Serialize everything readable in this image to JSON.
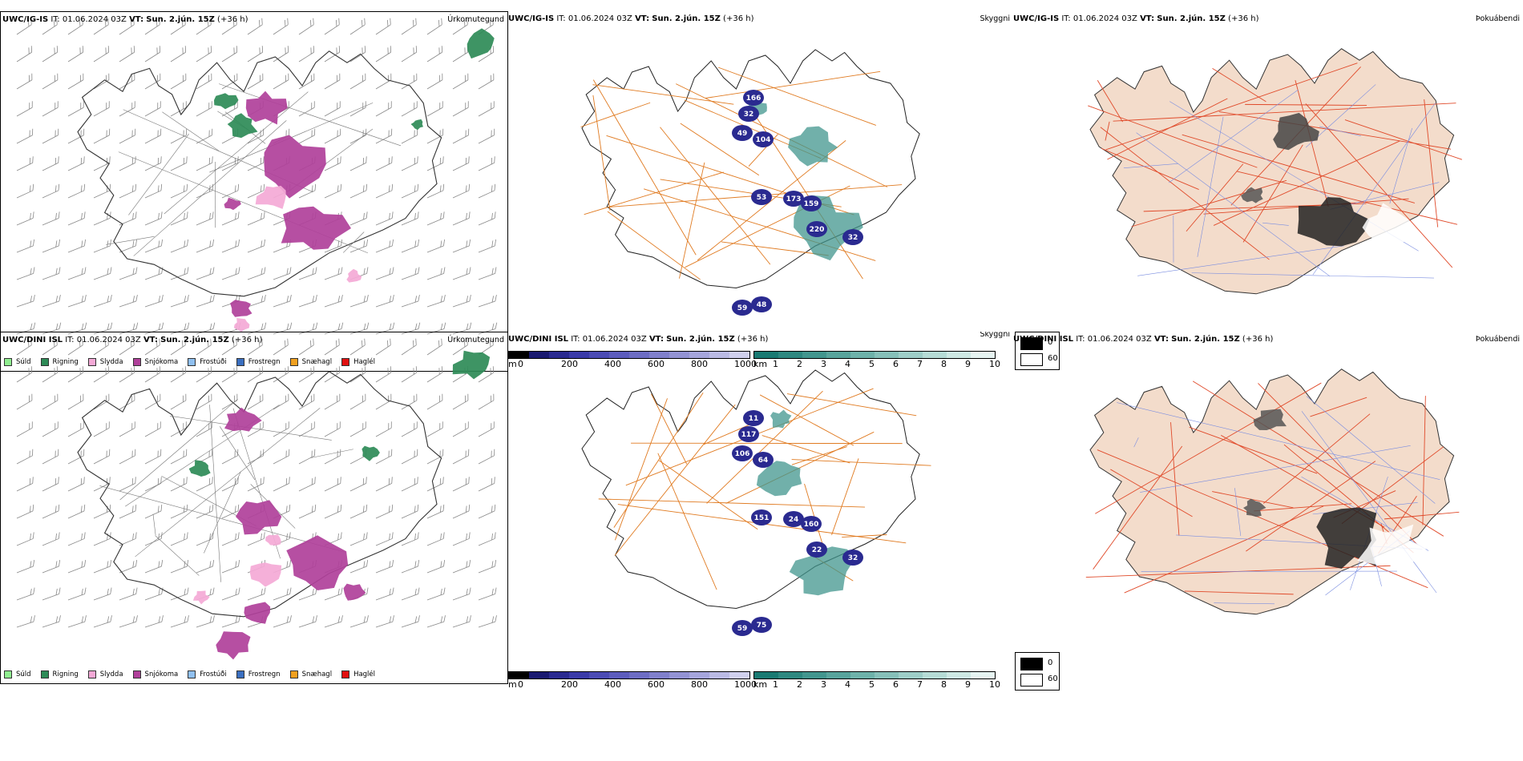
{
  "rows": [
    {
      "model": "UWC/IG-IS",
      "it_label": "IT:",
      "it_value": "01.06.2024 03Z",
      "vt_label": "VT:",
      "vt_value": "Sun. 2.jún. 15Z",
      "lead": "(+36 h)",
      "panel1_right": "Úrkomutegund",
      "panel2_right": "Skyggni",
      "panel3_right": "Þokuábendi",
      "cloud_labels": [
        "166",
        "32",
        "49",
        "104",
        "53",
        "159",
        "220",
        "173",
        "32",
        "59",
        "48"
      ]
    },
    {
      "model": "UWC/DINI ISL",
      "it_label": "IT:",
      "it_value": "01.06.2024 03Z",
      "vt_label": "VT:",
      "vt_value": "Sun. 2.jún. 15Z",
      "lead": "(+36 h)",
      "panel1_right": "Úrkomutegund",
      "panel2_right": "Skyggni",
      "panel3_right": "Þokuábendi",
      "cloud_labels": [
        "11",
        "117",
        "106",
        "64",
        "151",
        "160",
        "22",
        "24",
        "32",
        "59",
        "75"
      ]
    }
  ],
  "precip_legend": [
    {
      "label": "Súld",
      "color": "#90ee90"
    },
    {
      "label": "Rigning",
      "color": "#2e8b57"
    },
    {
      "label": "Slydda",
      "color": "#f4a9d6"
    },
    {
      "label": "Snjókoma",
      "color": "#b0409a"
    },
    {
      "label": "Frostúði",
      "color": "#90c0f0"
    },
    {
      "label": "Frostregn",
      "color": "#3a6fc0"
    },
    {
      "label": "Snæhagl",
      "color": "#f0a020"
    },
    {
      "label": "Haglél",
      "color": "#e01010"
    }
  ],
  "cloudbase_bar": {
    "unit": "m",
    "ticks": [
      "0",
      "200",
      "400",
      "600",
      "800",
      "1000"
    ],
    "colors": [
      "#000000",
      "#191970",
      "#2a2a90",
      "#3a3aa8",
      "#4b4bb4",
      "#5c5cbd",
      "#6d6dc4",
      "#8080cc",
      "#9393d4",
      "#a6a6dc",
      "#babae4",
      "#d0d0ee"
    ]
  },
  "visibility_bar": {
    "unit": "km",
    "ticks": [
      "1",
      "2",
      "3",
      "4",
      "5",
      "6",
      "7",
      "8",
      "9",
      "10"
    ],
    "colors": [
      "#1a7a72",
      "#2e8880",
      "#42968e",
      "#58a49c",
      "#6eb2aa",
      "#86c0b9",
      "#9ecec8",
      "#b6dcd6",
      "#cee9e4",
      "#e6f4f2"
    ]
  },
  "fog_legend": {
    "items": [
      {
        "label": "0",
        "color": "#000000"
      },
      {
        "label": "60",
        "color": "#ffffff"
      }
    ]
  }
}
